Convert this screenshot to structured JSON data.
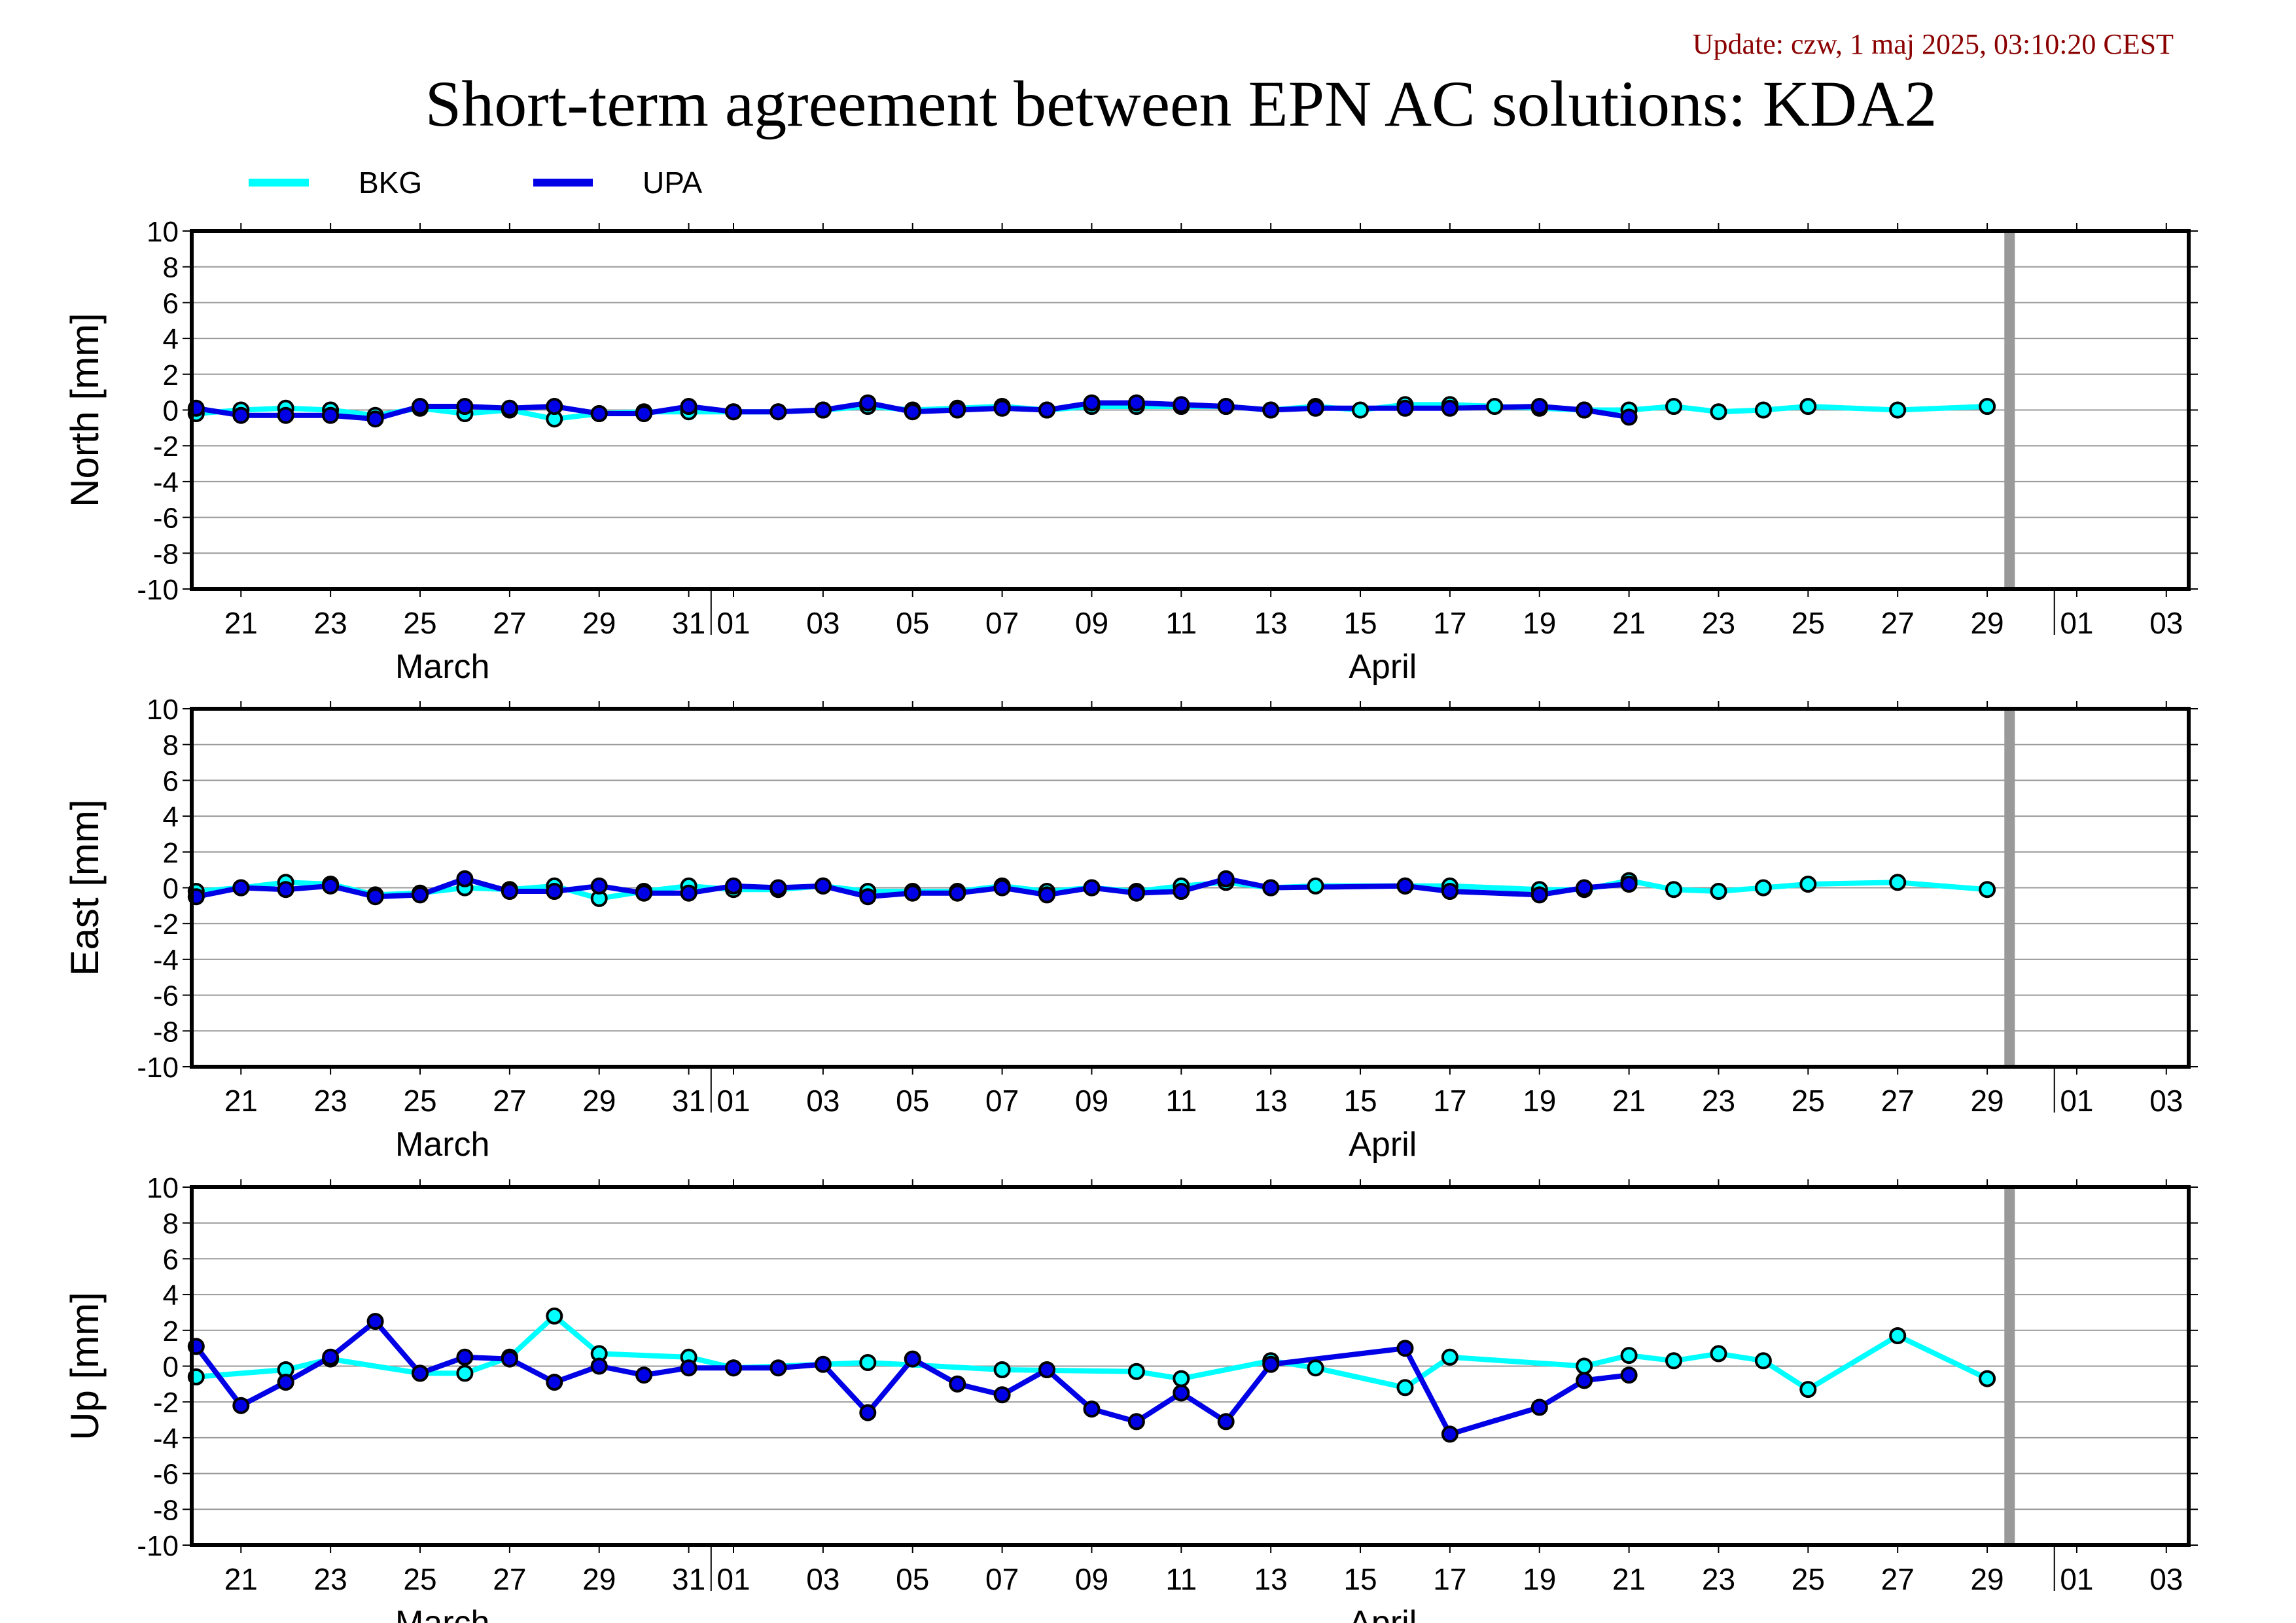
{
  "update_text": "Update: czw, 1 maj 2025, 03:10:20 CEST",
  "title": "Short-term agreement between EPN AC solutions: KDA2",
  "colors": {
    "bkg": "#00ffff",
    "upa": "#0000e6",
    "update": "#8b0000",
    "cutoff": "#999999",
    "grid": "#999999"
  },
  "x_axis": {
    "ticks": [
      {
        "day": 21,
        "label": "21"
      },
      {
        "day": 23,
        "label": "23"
      },
      {
        "day": 25,
        "label": "25"
      },
      {
        "day": 27,
        "label": "27"
      },
      {
        "day": 29,
        "label": "29"
      },
      {
        "day": 31,
        "label": "31"
      },
      {
        "day": 32,
        "label": "01"
      },
      {
        "day": 34,
        "label": "03"
      },
      {
        "day": 36,
        "label": "05"
      },
      {
        "day": 38,
        "label": "07"
      },
      {
        "day": 40,
        "label": "09"
      },
      {
        "day": 42,
        "label": "11"
      },
      {
        "day": 44,
        "label": "13"
      },
      {
        "day": 46,
        "label": "15"
      },
      {
        "day": 48,
        "label": "17"
      },
      {
        "day": 50,
        "label": "19"
      },
      {
        "day": 52,
        "label": "21"
      },
      {
        "day": 54,
        "label": "23"
      },
      {
        "day": 56,
        "label": "25"
      },
      {
        "day": 58,
        "label": "27"
      },
      {
        "day": 60,
        "label": "29"
      },
      {
        "day": 62,
        "label": "01"
      },
      {
        "day": 64,
        "label": "03"
      }
    ],
    "months": [
      {
        "day": 25.5,
        "label": "March"
      },
      {
        "day": 46.5,
        "label": "April"
      }
    ],
    "month_boundaries": [
      31.5,
      61.5
    ]
  },
  "chart_data": {
    "type": "line",
    "x_unit": "day counted from 1 March 2025 (32 = 1 April)",
    "xlim": [
      19.9,
      64.5
    ],
    "cutoff_day": 60.5,
    "legend": [
      {
        "name": "BKG",
        "color": "#00ffff"
      },
      {
        "name": "UPA",
        "color": "#0000e6"
      }
    ],
    "legend_position": "top-left",
    "panels": [
      {
        "ylabel": "North [mm]",
        "ylim": [
          -10,
          10
        ],
        "yticks": [
          10,
          8,
          6,
          4,
          2,
          0,
          -2,
          -4,
          -6,
          -8,
          -10
        ],
        "series": [
          {
            "name": "BKG",
            "x": [
              20,
              21,
              22,
              23,
              24,
              25,
              26,
              27,
              28,
              29,
              30,
              31,
              32,
              33,
              34,
              35,
              36,
              37,
              38,
              39,
              40,
              41,
              42,
              43,
              44,
              45,
              46,
              47,
              48,
              49,
              50,
              51,
              52,
              53,
              54,
              55,
              56,
              58,
              60
            ],
            "y": [
              -0.2,
              0.0,
              0.1,
              0.0,
              -0.3,
              0.1,
              -0.2,
              0.0,
              -0.5,
              -0.2,
              -0.1,
              -0.1,
              -0.1,
              -0.1,
              0.0,
              0.2,
              0.0,
              0.1,
              0.2,
              0.0,
              0.2,
              0.2,
              0.2,
              0.2,
              0.0,
              0.2,
              0.0,
              0.3,
              0.3,
              0.2,
              0.1,
              0.0,
              0.0,
              0.2,
              -0.1,
              0.0,
              0.2,
              0.0,
              0.2
            ]
          },
          {
            "name": "UPA",
            "x": [
              20,
              21,
              22,
              23,
              24,
              25,
              26,
              27,
              28,
              29,
              30,
              31,
              32,
              33,
              34,
              35,
              36,
              37,
              38,
              39,
              40,
              41,
              42,
              43,
              44,
              45,
              47,
              48,
              50,
              51,
              52
            ],
            "y": [
              0.1,
              -0.3,
              -0.3,
              -0.3,
              -0.5,
              0.2,
              0.2,
              0.1,
              0.2,
              -0.2,
              -0.2,
              0.2,
              -0.1,
              -0.1,
              0.0,
              0.4,
              -0.1,
              0.0,
              0.1,
              0.0,
              0.4,
              0.4,
              0.3,
              0.2,
              0.0,
              0.1,
              0.1,
              0.1,
              0.2,
              0.0,
              -0.4
            ]
          }
        ]
      },
      {
        "ylabel": "East [mm]",
        "ylim": [
          -10,
          10
        ],
        "yticks": [
          10,
          8,
          6,
          4,
          2,
          0,
          -2,
          -4,
          -6,
          -8,
          -10
        ],
        "series": [
          {
            "name": "BKG",
            "x": [
              20,
              21,
              22,
              23,
              24,
              25,
              26,
              27,
              28,
              29,
              30,
              31,
              32,
              33,
              34,
              35,
              36,
              37,
              38,
              39,
              40,
              41,
              42,
              43,
              44,
              45,
              47,
              48,
              50,
              51,
              52,
              53,
              54,
              55,
              56,
              58,
              60
            ],
            "y": [
              -0.2,
              0.0,
              0.3,
              0.2,
              -0.4,
              -0.3,
              0.0,
              -0.1,
              0.1,
              -0.6,
              -0.2,
              0.1,
              -0.1,
              -0.1,
              0.1,
              -0.2,
              -0.2,
              -0.2,
              0.1,
              -0.2,
              0.0,
              -0.2,
              0.1,
              0.3,
              0.0,
              0.1,
              0.1,
              0.1,
              -0.1,
              -0.1,
              0.4,
              -0.1,
              -0.2,
              0.0,
              0.2,
              0.3,
              -0.1
            ]
          },
          {
            "name": "UPA",
            "x": [
              20,
              21,
              22,
              23,
              24,
              25,
              26,
              27,
              28,
              29,
              30,
              31,
              32,
              33,
              34,
              35,
              36,
              37,
              38,
              39,
              40,
              41,
              42,
              43,
              44,
              47,
              48,
              50,
              51,
              52
            ],
            "y": [
              -0.5,
              0.0,
              -0.1,
              0.1,
              -0.5,
              -0.4,
              0.5,
              -0.2,
              -0.2,
              0.1,
              -0.3,
              -0.3,
              0.1,
              0.0,
              0.1,
              -0.5,
              -0.3,
              -0.3,
              0.0,
              -0.4,
              0.0,
              -0.3,
              -0.2,
              0.5,
              0.0,
              0.1,
              -0.2,
              -0.4,
              0.0,
              0.2
            ]
          }
        ]
      },
      {
        "ylabel": "Up [mm]",
        "ylim": [
          -10,
          10
        ],
        "yticks": [
          10,
          8,
          6,
          4,
          2,
          0,
          -2,
          -4,
          -6,
          -8,
          -10
        ],
        "series": [
          {
            "name": "BKG",
            "x": [
              20,
              22,
              23,
              25,
              26,
              27,
              28,
              29,
              31,
              32,
              35,
              38,
              41,
              42,
              44,
              45,
              47,
              48,
              51,
              52,
              53,
              54,
              55,
              56,
              58,
              60
            ],
            "y": [
              -0.6,
              -0.2,
              0.4,
              -0.4,
              -0.4,
              0.5,
              2.8,
              0.7,
              0.5,
              -0.1,
              0.2,
              -0.2,
              -0.3,
              -0.7,
              0.3,
              -0.1,
              -1.2,
              0.5,
              0.0,
              0.6,
              0.3,
              0.7,
              0.3,
              -1.3,
              1.7,
              -0.7
            ]
          },
          {
            "name": "UPA",
            "x": [
              20,
              21,
              22,
              23,
              24,
              25,
              26,
              27,
              28,
              29,
              30,
              31,
              32,
              33,
              34,
              35,
              36,
              37,
              38,
              39,
              40,
              41,
              42,
              43,
              44,
              47,
              48,
              50,
              51,
              52
            ],
            "y": [
              1.1,
              -2.2,
              -0.9,
              0.5,
              2.5,
              -0.4,
              0.5,
              0.4,
              -0.9,
              0.0,
              -0.5,
              -0.1,
              -0.1,
              -0.1,
              0.1,
              -2.6,
              0.4,
              -1.0,
              -1.6,
              -0.2,
              -2.4,
              -3.1,
              -1.5,
              -3.1,
              0.1,
              1.0,
              -3.8,
              -2.3,
              -0.8,
              -0.5
            ]
          }
        ]
      }
    ]
  }
}
